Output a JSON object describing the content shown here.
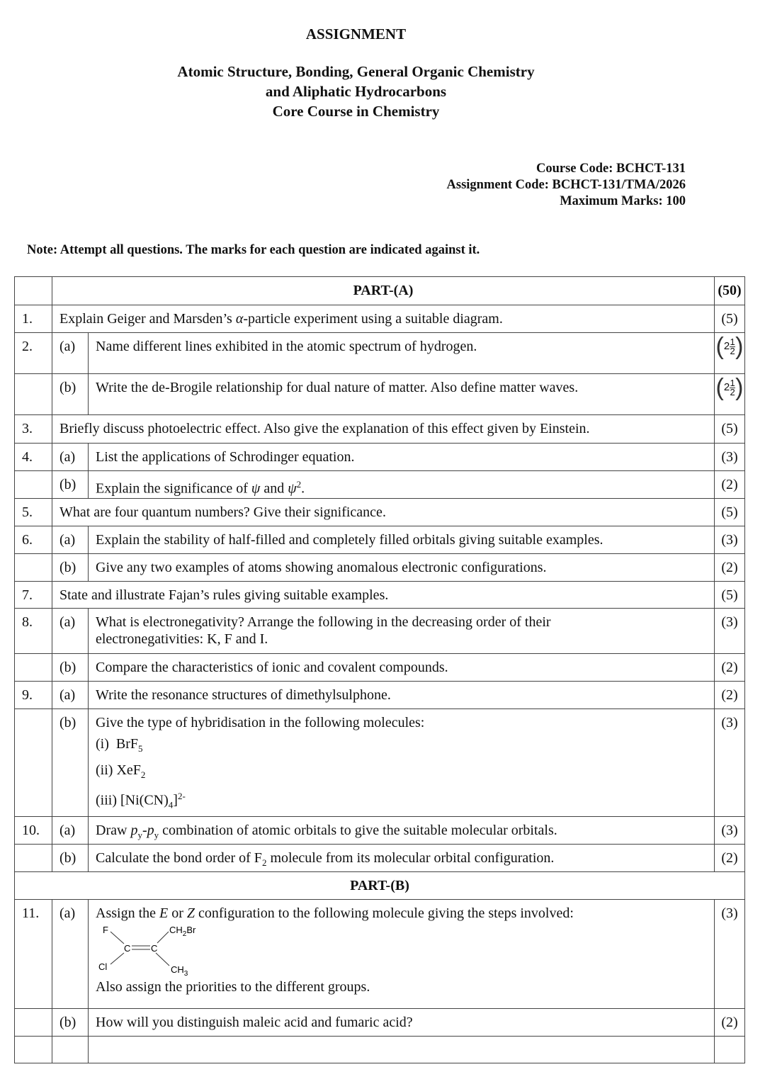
{
  "header": {
    "title": "ASSIGNMENT",
    "subtitle_1": "Atomic Structure, Bonding, General Organic Chemistry",
    "subtitle_2": "and Aliphatic Hydrocarbons",
    "subtitle_3": "Core Course in Chemistry"
  },
  "codes": {
    "course_code": "Course Code: BCHCT-131",
    "assignment_code": "Assignment Code: BCHCT-131/TMA/2026",
    "max_marks": "Maximum Marks: 100"
  },
  "note": "Note: Attempt all questions. The marks for each question are indicated against it.",
  "part_a": {
    "label": "PART-(A)",
    "marks": "(50)"
  },
  "part_b": {
    "label": "PART-(B)"
  },
  "q1": {
    "num": "1.",
    "pre": "Explain Geiger and Marsden’s ",
    "alpha": "α",
    "post": "-particle experiment using a suitable diagram.",
    "marks": "(5)"
  },
  "q2": {
    "num": "2.",
    "a": {
      "sub": "(a)",
      "text": "Name different lines exhibited in the atomic spectrum of hydrogen.",
      "marks_whole": "2",
      "marks_num": "1",
      "marks_den": "2"
    },
    "b": {
      "sub": "(b)",
      "text": "Write the de-Brogile relationship for dual nature of matter. Also define matter waves.",
      "marks_whole": "2",
      "marks_num": "1",
      "marks_den": "2"
    }
  },
  "q3": {
    "num": "3.",
    "text": "Briefly discuss photoelectric effect. Also give the explanation of this effect given by Einstein.",
    "marks": "(5)"
  },
  "q4": {
    "num": "4.",
    "a": {
      "sub": "(a)",
      "text": "List the applications of Schrodinger equation.",
      "marks": "(3)"
    },
    "b": {
      "sub": "(b)",
      "pre": "Explain the significance of ",
      "psi": "ψ",
      "mid": " and ",
      "psi2": "ψ",
      "sup": "2",
      "post": ".",
      "marks": "(2)"
    }
  },
  "q5": {
    "num": "5.",
    "text": "What are four quantum numbers? Give their significance.",
    "marks": "(5)"
  },
  "q6": {
    "num": "6.",
    "a": {
      "sub": "(a)",
      "text": "Explain the stability of half-filled and completely filled orbitals giving suitable examples.",
      "marks": "(3)"
    },
    "b": {
      "sub": "(b)",
      "text": "Give any two examples of atoms showing anomalous electronic configurations.",
      "marks": "(2)"
    }
  },
  "q7": {
    "num": "7.",
    "text": "State and illustrate Fajan’s rules giving suitable examples.",
    "marks": "(5)"
  },
  "q8": {
    "num": "8.",
    "a": {
      "sub": "(a)",
      "text_1": "What is electronegativity? Arrange the following in the decreasing order of their",
      "text_2": "electronegativities: K, F and I.",
      "marks": "(3)"
    },
    "b": {
      "sub": "(b)",
      "text": "Compare the characteristics of ionic and covalent compounds.",
      "marks": "(2)"
    }
  },
  "q9": {
    "num": "9.",
    "a": {
      "sub": "(a)",
      "text": "Write the resonance structures of dimethylsulphone.",
      "marks": "(2)"
    },
    "b": {
      "sub": "(b)",
      "text": "Give the type of hybridisation in the following molecules:",
      "marks": "(3)",
      "items": [
        {
          "label": "(i)",
          "formula": "BrF",
          "sub": "5"
        },
        {
          "label": "(ii)",
          "formula": "XeF",
          "sub": "2"
        },
        {
          "label": "(iii)",
          "formula": "[Ni(CN)",
          "sub": "4",
          "formula_end": "]",
          "sup": "2-"
        }
      ]
    }
  },
  "q10": {
    "num": "10.",
    "a": {
      "sub": "(a)",
      "pre": "Draw ",
      "p1": "p",
      "s1": "y",
      "dash": "-",
      "p2": "p",
      "s2": "y",
      "post": " combination of atomic orbitals to give the suitable molecular orbitals.",
      "marks": "(3)"
    },
    "b": {
      "sub": "(b)",
      "pre": "Calculate the bond order of F",
      "s": "2",
      "post": " molecule from its molecular orbital configuration.",
      "marks": "(2)"
    }
  },
  "q11": {
    "num": "11.",
    "a": {
      "sub": "(a)",
      "pre": "Assign the ",
      "e": "E",
      "mid": " or ",
      "z": "Z",
      "post": " configuration to the following molecule giving the steps involved:",
      "after": "Also assign the priorities to the different groups.",
      "marks": "(3)",
      "molecule": {
        "f": "F",
        "cl": "Cl",
        "c1": "C",
        "c2": "C",
        "ch2br": "CH",
        "ch2br_sub": "2",
        "ch2br_end": "Br",
        "ch3": "CH",
        "ch3_sub": "3"
      }
    },
    "b": {
      "sub": "(b)",
      "text": "How will you distinguish maleic acid and fumaric acid?",
      "marks": "(2)"
    }
  }
}
